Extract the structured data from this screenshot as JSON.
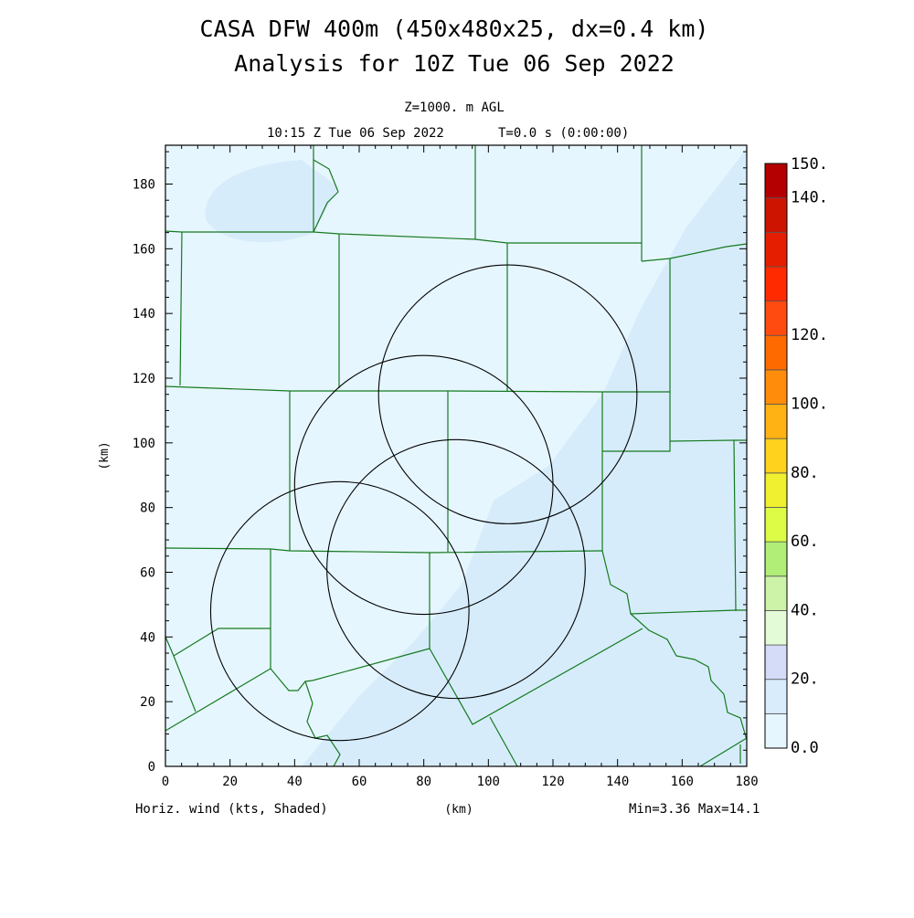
{
  "header": {
    "title_line1": "CASA DFW 400m (450x480x25, dx=0.4 km)",
    "title_line2": "Analysis for 10Z Tue 06 Sep 2022",
    "level": "Z=1000. m AGL",
    "valid_time": "10:15 Z Tue 06 Sep 2022",
    "model_time": "T=0.0 s (0:00:00)"
  },
  "axes": {
    "x_label": "(km)",
    "y_label": "(km)",
    "x_ticks": [
      "0",
      "20",
      "40",
      "60",
      "80",
      "100",
      "120",
      "140",
      "160",
      "180"
    ],
    "y_ticks": [
      "0",
      "20",
      "40",
      "60",
      "80",
      "100",
      "120",
      "140",
      "160",
      "180"
    ]
  },
  "footer": {
    "field_label": "Horiz. wind (kts, Shaded)",
    "minmax": "Min=3.36 Max=14.1"
  },
  "colorbar": {
    "labels": [
      "0.0",
      "20.",
      "40.",
      "60.",
      "80.",
      "100.",
      "120.",
      "140.",
      "150."
    ],
    "colors": [
      "#e6f6ff",
      "#d8ecfc",
      "#d4dcf8",
      "#e3fbd6",
      "#ccf3a8",
      "#b0ee78",
      "#dcfc46",
      "#f0f030",
      "#ffd21e",
      "#ffb214",
      "#ff8c0a",
      "#ff6a00",
      "#ff4a10",
      "#ff2a00",
      "#e61e00",
      "#cc1400",
      "#b40000"
    ]
  },
  "map": {
    "radar_circles_km": [
      {
        "cx": 54,
        "cy": 48,
        "r": 40
      },
      {
        "cx": 80,
        "cy": 87,
        "r": 40
      },
      {
        "cx": 90,
        "cy": 61,
        "r": 40
      },
      {
        "cx": 106,
        "cy": 115,
        "r": 40
      }
    ]
  },
  "colors": {
    "background": "#e6f6ff",
    "shaded": "#d6ecfb",
    "county_lines": "#157a1e",
    "radar_circles": "#000000"
  }
}
